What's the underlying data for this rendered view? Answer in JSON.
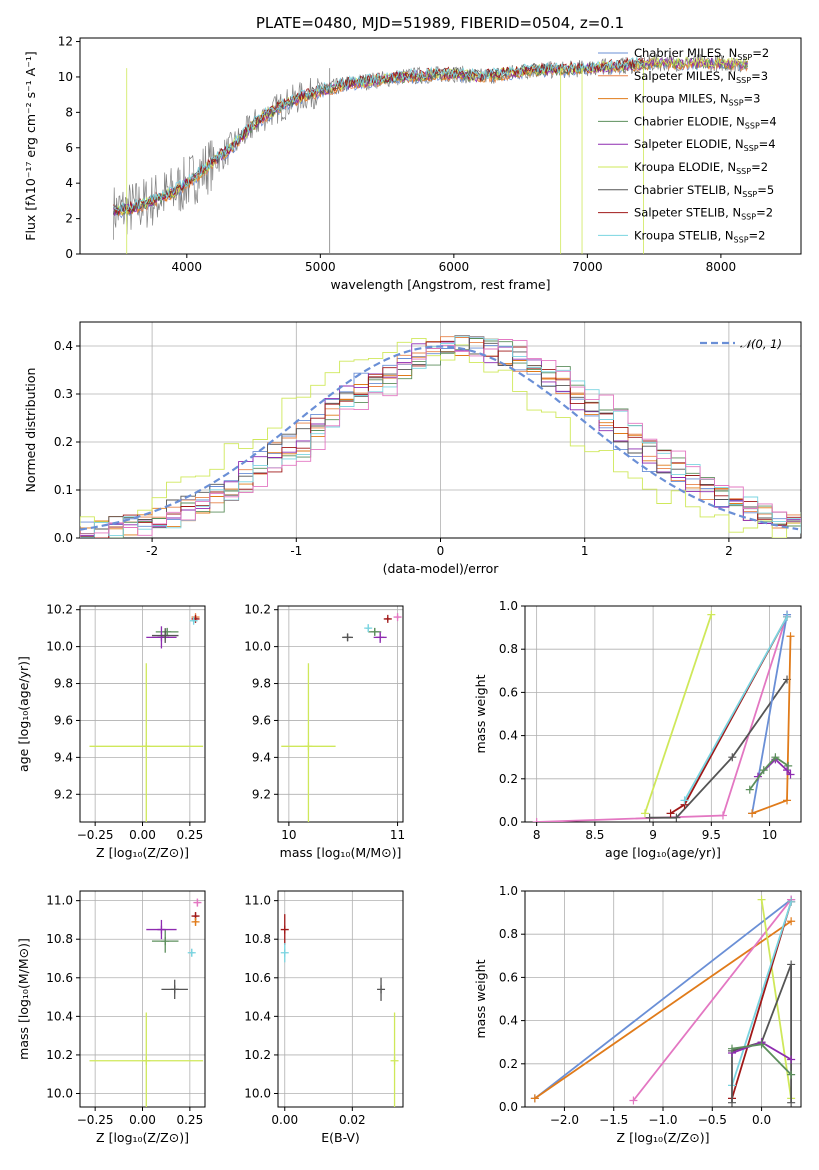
{
  "figure_title": "PLATE=0480, MJD=51989, FIBERID=0504, z=0.1",
  "colors": {
    "chabrier_miles": "#6a8fd6",
    "salpeter_miles": "#e8844a",
    "kroupa_miles": "#e07b1a",
    "chabrier_elodie": "#5c8f5c",
    "salpeter_elodie": "#8e2bb0",
    "kroupa_elodie": "#cfe85a",
    "chabrier_stelib": "#555555",
    "salpeter_stelib": "#a01818",
    "kroupa_stelib": "#7ad4e0",
    "pink": "#e377c2",
    "data_spectrum": "#808080",
    "normal_curve": "#6a8fd6"
  },
  "legend_names": [
    {
      "name": "Chabrier MILES, N",
      "sub": "SSP",
      "tail": "=2"
    },
    {
      "name": "Salpeter MILES, N",
      "sub": "SSP",
      "tail": "=3"
    },
    {
      "name": "Kroupa MILES, N",
      "sub": "SSP",
      "tail": "=3"
    },
    {
      "name": "Chabrier ELODIE, N",
      "sub": "SSP",
      "tail": "=4"
    },
    {
      "name": "Salpeter ELODIE, N",
      "sub": "SSP",
      "tail": "=4"
    },
    {
      "name": "Kroupa ELODIE, N",
      "sub": "SSP",
      "tail": "=2"
    },
    {
      "name": "Chabrier STELIB, N",
      "sub": "SSP",
      "tail": "=5"
    },
    {
      "name": "Salpeter STELIB, N",
      "sub": "SSP",
      "tail": "=2"
    },
    {
      "name": "Kroupa STELIB, N",
      "sub": "SSP",
      "tail": "=2"
    }
  ],
  "chart_data": [
    {
      "id": "spectrum",
      "type": "line",
      "xlabel": "wavelength [Angstrom, rest frame]",
      "ylabel": "Flux [fλ10⁻¹⁷ erg cm⁻² s⁻¹ A⁻¹]",
      "xlim": [
        3200,
        8600
      ],
      "ylim": [
        0,
        12.2
      ],
      "xticks": [
        4000,
        5000,
        6000,
        7000,
        8000
      ],
      "yticks": [
        0,
        2,
        4,
        6,
        8,
        10,
        12
      ],
      "grid": false,
      "legend_position": "upper right",
      "continuum_points": [
        [
          3450,
          2.4
        ],
        [
          3600,
          2.6
        ],
        [
          3700,
          2.9
        ],
        [
          3800,
          3.2
        ],
        [
          3900,
          3.5
        ],
        [
          4000,
          4.0
        ],
        [
          4100,
          4.6
        ],
        [
          4200,
          5.2
        ],
        [
          4300,
          5.8
        ],
        [
          4400,
          6.5
        ],
        [
          4500,
          7.3
        ],
        [
          4600,
          7.9
        ],
        [
          4700,
          8.3
        ],
        [
          4800,
          8.7
        ],
        [
          4900,
          9.0
        ],
        [
          5000,
          9.2
        ],
        [
          5200,
          9.6
        ],
        [
          5400,
          9.8
        ],
        [
          5600,
          10.0
        ],
        [
          5800,
          10.1
        ],
        [
          6000,
          10.2
        ],
        [
          6200,
          10.0
        ],
        [
          6400,
          10.2
        ],
        [
          6600,
          10.4
        ],
        [
          6800,
          10.4
        ],
        [
          7000,
          10.5
        ],
        [
          7200,
          10.6
        ],
        [
          7400,
          10.7
        ],
        [
          7500,
          10.8
        ],
        [
          8000,
          10.8
        ],
        [
          8200,
          10.7
        ]
      ]
    },
    {
      "id": "residuals",
      "type": "histogram",
      "xlabel": "(data-model)/error",
      "ylabel": "Normed distribution",
      "xlim": [
        -2.5,
        2.5
      ],
      "ylim": [
        0,
        0.45
      ],
      "xticks": [
        -2,
        -1,
        0,
        1,
        2
      ],
      "yticks": [
        0.0,
        0.1,
        0.2,
        0.3,
        0.4
      ],
      "grid": true,
      "legend": "𝒩(0, 1)",
      "legend_position": "upper right",
      "normal_mean": 0,
      "normal_sigma": 1,
      "hist_center": 0.2,
      "hist_sigma": 1.0
    },
    {
      "id": "age_vs_z",
      "type": "errorbar",
      "xlabel": "Z [log₁₀(Z/Z⊙)]",
      "ylabel": "age  [log₁₀(age/yr)]",
      "xlim": [
        -0.33,
        0.33
      ],
      "ylim": [
        9.05,
        10.22
      ],
      "xticks": [
        -0.25,
        0.0,
        0.25
      ],
      "xticklabels": [
        "−0.25",
        "0.00",
        "0.25"
      ],
      "yticks": [
        9.2,
        9.4,
        9.6,
        9.8,
        10.0,
        10.2
      ],
      "grid": true,
      "points": [
        {
          "key": "kroupa_elodie",
          "x": 0.02,
          "xerr": 0.3,
          "y": 9.46,
          "yerr": 0.45
        },
        {
          "key": "chabrier_elodie",
          "x": 0.13,
          "xerr": 0.06,
          "y": 10.08,
          "yerr": 0.02
        },
        {
          "key": "salpeter_elodie",
          "x": 0.1,
          "xerr": 0.08,
          "y": 10.05,
          "yerr": 0.06
        },
        {
          "key": "chabrier_stelib",
          "x": 0.12,
          "xerr": 0.07,
          "y": 10.06,
          "yerr": 0.04
        },
        {
          "key": "salpeter_miles",
          "x": 0.28,
          "xerr": 0.01,
          "y": 10.16,
          "yerr": 0.01
        },
        {
          "key": "salpeter_stelib",
          "x": 0.28,
          "xerr": 0.01,
          "y": 10.15,
          "yerr": 0.01
        },
        {
          "key": "kroupa_stelib",
          "x": 0.27,
          "xerr": 0.01,
          "y": 10.14,
          "yerr": 0.01
        }
      ]
    },
    {
      "id": "age_vs_mass",
      "type": "errorbar",
      "xlabel": "mass [log₁₀(M/M⊙)]",
      "ylabel": "",
      "xlim": [
        9.9,
        11.05
      ],
      "ylim": [
        9.05,
        10.22
      ],
      "xticks": [
        10,
        11
      ],
      "yticks": [
        9.2,
        9.4,
        9.6,
        9.8,
        10.0,
        10.2
      ],
      "grid": true,
      "points": [
        {
          "key": "kroupa_elodie",
          "x": 10.18,
          "xerr": 0.25,
          "y": 9.46,
          "yerr": 0.45
        },
        {
          "key": "chabrier_stelib",
          "x": 10.54,
          "xerr": 0.05,
          "y": 10.05,
          "yerr": 0.02
        },
        {
          "key": "chabrier_elodie",
          "x": 10.79,
          "xerr": 0.06,
          "y": 10.08,
          "yerr": 0.02
        },
        {
          "key": "salpeter_elodie",
          "x": 10.84,
          "xerr": 0.06,
          "y": 10.05,
          "yerr": 0.03
        },
        {
          "key": "kroupa_stelib",
          "x": 10.73,
          "xerr": 0.02,
          "y": 10.1,
          "yerr": 0.02
        },
        {
          "key": "salpeter_stelib",
          "x": 10.91,
          "xerr": 0.02,
          "y": 10.15,
          "yerr": 0.01
        },
        {
          "key": "pink",
          "x": 11.0,
          "xerr": 0.01,
          "y": 10.16,
          "yerr": 0.01
        }
      ]
    },
    {
      "id": "mass_vs_z",
      "type": "errorbar",
      "xlabel": "Z [log₁₀(Z/Z⊙)]",
      "ylabel": "mass [log₁₀(M/M⊙)]",
      "xlim": [
        -0.33,
        0.33
      ],
      "ylim": [
        9.93,
        11.05
      ],
      "xticks": [
        -0.25,
        0.0,
        0.25
      ],
      "xticklabels": [
        "−0.25",
        "0.00",
        "0.25"
      ],
      "yticks": [
        10.0,
        10.2,
        10.4,
        10.6,
        10.8,
        11.0
      ],
      "grid": true,
      "points": [
        {
          "key": "kroupa_elodie",
          "x": 0.02,
          "xerr": 0.3,
          "y": 10.17,
          "yerr": 0.25
        },
        {
          "key": "chabrier_stelib",
          "x": 0.17,
          "xerr": 0.07,
          "y": 10.54,
          "yerr": 0.05
        },
        {
          "key": "chabrier_elodie",
          "x": 0.12,
          "xerr": 0.07,
          "y": 10.79,
          "yerr": 0.06
        },
        {
          "key": "salpeter_elodie",
          "x": 0.1,
          "xerr": 0.08,
          "y": 10.85,
          "yerr": 0.05
        },
        {
          "key": "kroupa_stelib",
          "x": 0.26,
          "xerr": 0.01,
          "y": 10.73,
          "yerr": 0.02
        },
        {
          "key": "salpeter_stelib",
          "x": 0.28,
          "xerr": 0.01,
          "y": 10.92,
          "yerr": 0.02
        },
        {
          "key": "kroupa_miles",
          "x": 0.28,
          "xerr": 0.01,
          "y": 10.89,
          "yerr": 0.02
        },
        {
          "key": "pink",
          "x": 0.29,
          "xerr": 0.01,
          "y": 10.99,
          "yerr": 0.02
        }
      ]
    },
    {
      "id": "mass_vs_ebv",
      "type": "errorbar",
      "xlabel": "E(B-V)",
      "ylabel": "",
      "xlim": [
        -0.002,
        0.035
      ],
      "ylim": [
        9.93,
        11.05
      ],
      "xticks": [
        0.0,
        0.02
      ],
      "xticklabels": [
        "0.00",
        "0.02"
      ],
      "yticks": [
        10.0,
        10.2,
        10.4,
        10.6,
        10.8,
        11.0
      ],
      "grid": true,
      "points": [
        {
          "key": "kroupa_elodie",
          "x": 0.0325,
          "xerr": 0.0,
          "y": 10.17,
          "yerr": 0.25
        },
        {
          "key": "chabrier_stelib",
          "x": 0.0285,
          "xerr": 0.0,
          "y": 10.54,
          "yerr": 0.06
        },
        {
          "key": "salpeter_stelib",
          "x": 0.0,
          "xerr": 0.0,
          "y": 10.85,
          "yerr": 0.08
        },
        {
          "key": "kroupa_stelib",
          "x": 0.0,
          "xerr": 0.0,
          "y": 10.73,
          "yerr": 0.05
        }
      ]
    },
    {
      "id": "weight_vs_age",
      "type": "line",
      "xlabel": "age  [log₁₀(age/yr)]",
      "ylabel": "mass weight",
      "xlim": [
        7.9,
        10.27
      ],
      "ylim": [
        0,
        1.0
      ],
      "xticks": [
        8.0,
        8.5,
        9.0,
        9.5,
        10.0
      ],
      "yticks": [
        0.0,
        0.2,
        0.4,
        0.6,
        0.8,
        1.0
      ],
      "grid": true,
      "series": [
        {
          "key": "kroupa_elodie",
          "points": [
            [
              8.93,
              0.04
            ],
            [
              9.5,
              0.96
            ]
          ]
        },
        {
          "key": "pink",
          "points": [
            [
              8.0,
              0.0
            ],
            [
              9.6,
              0.03
            ],
            [
              10.15,
              0.96
            ]
          ]
        },
        {
          "key": "chabrier_stelib",
          "points": [
            [
              8.97,
              0.02
            ],
            [
              9.2,
              0.02
            ],
            [
              9.68,
              0.3
            ],
            [
              10.15,
              0.66
            ]
          ]
        },
        {
          "key": "salpeter_stelib",
          "points": [
            [
              9.15,
              0.04
            ],
            [
              9.27,
              0.08
            ],
            [
              10.15,
              0.95
            ]
          ]
        },
        {
          "key": "chabrier_miles",
          "points": [
            [
              9.85,
              0.04
            ],
            [
              10.15,
              0.96
            ]
          ]
        },
        {
          "key": "kroupa_miles",
          "points": [
            [
              9.85,
              0.04
            ],
            [
              10.15,
              0.1
            ],
            [
              10.18,
              0.86
            ]
          ]
        },
        {
          "key": "salpeter_elodie",
          "points": [
            [
              9.9,
              0.21
            ],
            [
              10.05,
              0.29
            ],
            [
              10.15,
              0.24
            ],
            [
              10.18,
              0.22
            ]
          ]
        },
        {
          "key": "chabrier_elodie",
          "points": [
            [
              9.83,
              0.15
            ],
            [
              9.95,
              0.24
            ],
            [
              10.05,
              0.3
            ],
            [
              10.16,
              0.26
            ]
          ]
        },
        {
          "key": "kroupa_stelib",
          "points": [
            [
              9.27,
              0.1
            ],
            [
              10.15,
              0.95
            ]
          ]
        }
      ]
    },
    {
      "id": "weight_vs_z",
      "type": "line",
      "xlabel": "Z [log₁₀(Z/Z⊙)]",
      "ylabel": "mass weight",
      "xlim": [
        -2.4,
        0.4
      ],
      "ylim": [
        0,
        1.0
      ],
      "xticks": [
        -2.0,
        -1.5,
        -1.0,
        -0.5,
        0.0
      ],
      "xticklabels": [
        "−2.0",
        "−1.5",
        "−1.0",
        "−0.5",
        "0.0"
      ],
      "yticks": [
        0.0,
        0.2,
        0.4,
        0.6,
        0.8,
        1.0
      ],
      "grid": true,
      "series": [
        {
          "key": "chabrier_miles",
          "points": [
            [
              -2.3,
              0.04
            ],
            [
              0.3,
              0.96
            ]
          ]
        },
        {
          "key": "kroupa_miles",
          "points": [
            [
              -2.3,
              0.04
            ],
            [
              0.3,
              0.86
            ]
          ]
        },
        {
          "key": "pink",
          "points": [
            [
              -1.3,
              0.03
            ],
            [
              0.3,
              0.96
            ]
          ]
        },
        {
          "key": "kroupa_elodie",
          "points": [
            [
              0.0,
              0.96
            ],
            [
              0.3,
              0.04
            ]
          ]
        },
        {
          "key": "salpeter_stelib",
          "points": [
            [
              -0.3,
              0.04
            ],
            [
              0.3,
              0.95
            ]
          ]
        },
        {
          "key": "kroupa_stelib",
          "points": [
            [
              -0.3,
              0.1
            ],
            [
              0.3,
              0.95
            ]
          ]
        },
        {
          "key": "chabrier_stelib",
          "points": [
            [
              -0.3,
              0.02
            ],
            [
              -0.3,
              0.26
            ],
            [
              0.0,
              0.3
            ],
            [
              0.3,
              0.66
            ],
            [
              0.3,
              0.02
            ]
          ]
        },
        {
          "key": "salpeter_elodie",
          "points": [
            [
              -0.3,
              0.25
            ],
            [
              0.0,
              0.3
            ],
            [
              0.3,
              0.22
            ]
          ]
        },
        {
          "key": "chabrier_elodie",
          "points": [
            [
              -0.3,
              0.27
            ],
            [
              0.0,
              0.29
            ],
            [
              0.3,
              0.15
            ]
          ]
        }
      ]
    }
  ]
}
